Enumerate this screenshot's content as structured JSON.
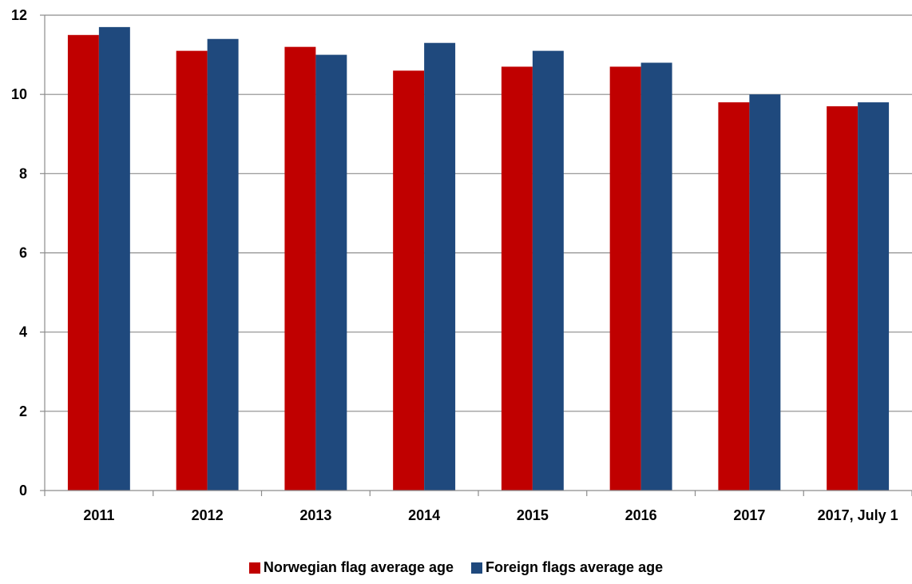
{
  "chart_data": {
    "type": "bar",
    "title": "",
    "xlabel": "",
    "ylabel": "",
    "categories": [
      "2011",
      "2012",
      "2013",
      "2014",
      "2015",
      "2016",
      "2017",
      "2017, July 1"
    ],
    "series": [
      {
        "name": "Norwegian flag average age",
        "color": "#c00000",
        "values": [
          11.5,
          11.1,
          11.2,
          10.6,
          10.7,
          10.7,
          9.8,
          9.7
        ]
      },
      {
        "name": "Foreign flags average age",
        "color": "#1f497d",
        "values": [
          11.7,
          11.4,
          11.0,
          11.3,
          11.1,
          10.8,
          10.0,
          9.8
        ]
      }
    ],
    "ylim": [
      0,
      12
    ],
    "yticks": [
      0,
      2,
      4,
      6,
      8,
      10,
      12
    ],
    "grid": true,
    "legend_position": "bottom"
  }
}
